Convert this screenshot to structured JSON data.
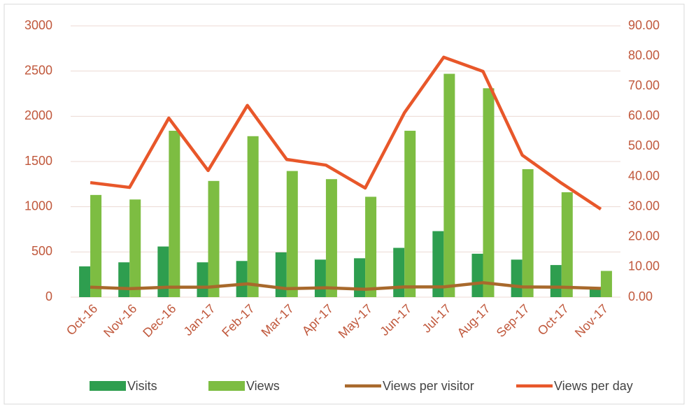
{
  "chart_data": {
    "type": "bar",
    "categories": [
      "Oct-16",
      "Nov-16",
      "Dec-16",
      "Jan-17",
      "Feb-17",
      "Mar-17",
      "Apr-17",
      "May-17",
      "Jun-17",
      "Jul-17",
      "Aug-17",
      "Sep-17",
      "Oct-17",
      "Nov-17"
    ],
    "series": [
      {
        "name": "Visits",
        "type": "bar",
        "color": "#2e9e4f",
        "values": [
          340,
          385,
          560,
          385,
          400,
          495,
          415,
          430,
          545,
          730,
          480,
          415,
          355,
          110
        ]
      },
      {
        "name": "Views",
        "type": "bar",
        "color": "#7dbd42",
        "values": [
          1130,
          1080,
          1840,
          1285,
          1780,
          1395,
          1305,
          1110,
          1840,
          2470,
          2310,
          1415,
          1160,
          290
        ]
      },
      {
        "name": "Views per visitor",
        "type": "line",
        "axis": "y2",
        "color": "#a8692c",
        "values": [
          3.3,
          2.8,
          3.3,
          3.3,
          4.4,
          2.8,
          3.1,
          2.6,
          3.4,
          3.4,
          4.8,
          3.4,
          3.3,
          2.9
        ]
      },
      {
        "name": "Views per day",
        "type": "line",
        "axis": "y2",
        "color": "#e8572a",
        "values": [
          38.0,
          36.4,
          59.4,
          42.0,
          63.6,
          45.7,
          43.8,
          36.2,
          61.2,
          79.6,
          74.9,
          47.1,
          37.8,
          29.2
        ]
      }
    ],
    "ylim": [
      0,
      3000
    ],
    "yticks": [
      0,
      500,
      1000,
      1500,
      2000,
      2500,
      3000
    ],
    "y2lim": [
      0,
      90
    ],
    "y2ticks": [
      {
        "value": 0,
        "label": "0.00"
      },
      {
        "value": 10,
        "label": "10.00"
      },
      {
        "value": 20,
        "label": "20.00"
      },
      {
        "value": 30,
        "label": "30.00"
      },
      {
        "value": 40,
        "label": "40.00"
      },
      {
        "value": 50,
        "label": "50.00"
      },
      {
        "value": 60,
        "label": "60.00"
      },
      {
        "value": 70,
        "label": "70.00"
      },
      {
        "value": 80,
        "label": "80.00"
      },
      {
        "value": 90,
        "label": "90.00"
      }
    ],
    "grid": true,
    "legend": "bottom"
  }
}
